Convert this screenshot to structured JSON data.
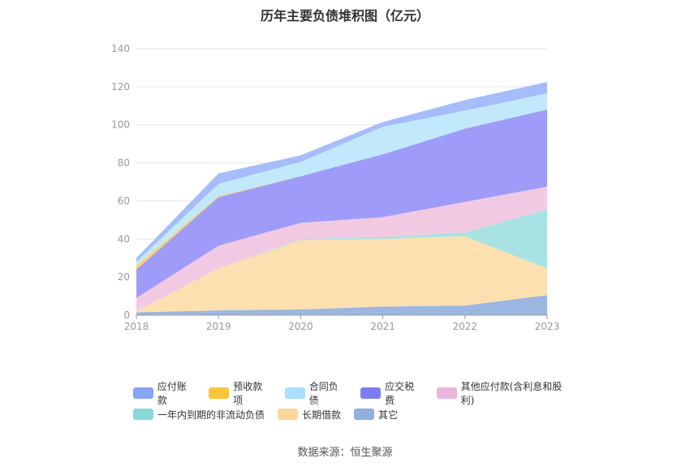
{
  "chart_data": {
    "type": "area",
    "stacked": true,
    "title": "历年主要负债堆积图（亿元）",
    "x": [
      "2018",
      "2019",
      "2020",
      "2021",
      "2022",
      "2023"
    ],
    "ylim": [
      0,
      140
    ],
    "yticks": [
      0,
      20,
      40,
      60,
      80,
      100,
      120,
      140
    ],
    "grid": true,
    "legend_position": "bottom",
    "series": [
      {
        "name": "其它",
        "color": "#9bb6e0",
        "values": [
          1.5,
          2.5,
          3.0,
          4.5,
          5.0,
          10.5
        ]
      },
      {
        "name": "长期借款",
        "color": "#fde0b0",
        "values": [
          0.5,
          22.0,
          36.5,
          35.5,
          36.5,
          14.0
        ]
      },
      {
        "name": "一年内到期的非流动负债",
        "color": "#a8e2e2",
        "values": [
          0.0,
          0.0,
          0.5,
          1.0,
          2.0,
          31.0
        ]
      },
      {
        "name": "其他应付款(含利息和股利)",
        "color": "#f2c9e3",
        "values": [
          7.0,
          12.0,
          8.5,
          10.5,
          16.0,
          12.0
        ]
      },
      {
        "name": "应交税费",
        "color": "#9e9cf8",
        "values": [
          15.0,
          25.5,
          24.5,
          33.0,
          38.5,
          40.5
        ]
      },
      {
        "name": "预收款项",
        "color": "#fcd265",
        "values": [
          2.0,
          0.5,
          0.0,
          0.0,
          0.0,
          0.0
        ]
      },
      {
        "name": "合同负债",
        "color": "#c2e8fb",
        "values": [
          2.0,
          6.5,
          7.5,
          14.5,
          9.5,
          8.5
        ]
      },
      {
        "name": "应付账款",
        "color": "#a6bcfb",
        "values": [
          2.0,
          5.5,
          3.5,
          2.5,
          5.5,
          6.0
        ]
      }
    ]
  },
  "legend": {
    "row1": [
      {
        "name": "应付账款",
        "color": "#87a4f5"
      },
      {
        "name": "预收款项",
        "color": "#fac63b"
      },
      {
        "name": "合同负债",
        "color": "#a9e0fb"
      },
      {
        "name": "应交税费",
        "color": "#7b7ef1"
      },
      {
        "name": "其他应付款(含利息和股利)",
        "color": "#ecb6dc"
      }
    ],
    "row2": [
      {
        "name": "一年内到期的非流动负债",
        "color": "#89d8d8"
      },
      {
        "name": "长期借款",
        "color": "#fdd699"
      },
      {
        "name": "其它",
        "color": "#8fb0dc"
      }
    ]
  },
  "source": "数据来源：恒生聚源"
}
